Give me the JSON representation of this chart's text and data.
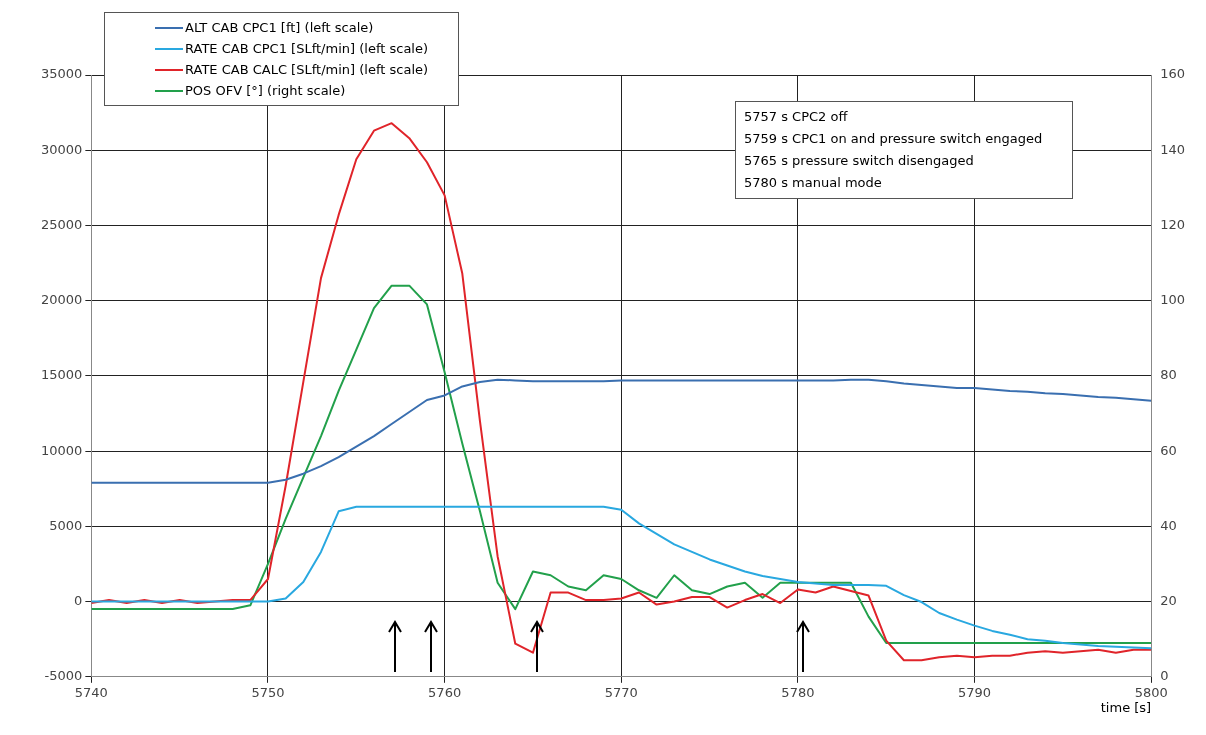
{
  "chart_data": {
    "type": "line",
    "xlabel": "time [s]",
    "x": [
      5740,
      5741,
      5742,
      5743,
      5744,
      5745,
      5746,
      5747,
      5748,
      5749,
      5750,
      5751,
      5752,
      5753,
      5754,
      5755,
      5756,
      5757,
      5758,
      5759,
      5760,
      5761,
      5762,
      5763,
      5764,
      5765,
      5766,
      5767,
      5768,
      5769,
      5770,
      5771,
      5772,
      5773,
      5774,
      5775,
      5776,
      5777,
      5778,
      5779,
      5780,
      5781,
      5782,
      5783,
      5784,
      5785,
      5786,
      5787,
      5788,
      5789,
      5790,
      5791,
      5792,
      5793,
      5794,
      5795,
      5796,
      5797,
      5798,
      5799,
      5800
    ],
    "series": [
      {
        "name": "ALT CAB CPC1 [ft] (left scale)",
        "color": "#3a6fb0",
        "values": [
          7900,
          7900,
          7900,
          7900,
          7900,
          7900,
          7900,
          7900,
          7900,
          7900,
          7900,
          8100,
          8500,
          9000,
          9600,
          10300,
          11000,
          11800,
          12600,
          13400,
          13700,
          14300,
          14600,
          14750,
          14700,
          14650,
          14650,
          14650,
          14650,
          14650,
          14700,
          14700,
          14700,
          14700,
          14700,
          14700,
          14700,
          14700,
          14700,
          14700,
          14700,
          14700,
          14700,
          14750,
          14750,
          14650,
          14500,
          14400,
          14300,
          14200,
          14200,
          14100,
          14000,
          13950,
          13850,
          13800,
          13700,
          13600,
          13550,
          13450,
          13350
        ]
      },
      {
        "name": "RATE CAB CPC1 [SLft/min] (left scale)",
        "color": "#29a8e0",
        "values": [
          0,
          0,
          0,
          0,
          0,
          0,
          0,
          0,
          0,
          0,
          0,
          200,
          1300,
          3300,
          6000,
          6300,
          6300,
          6300,
          6300,
          6300,
          6300,
          6300,
          6300,
          6300,
          6300,
          6300,
          6300,
          6300,
          6300,
          6300,
          6100,
          5200,
          4500,
          3800,
          3300,
          2800,
          2400,
          2000,
          1700,
          1500,
          1300,
          1200,
          1100,
          1100,
          1100,
          1050,
          430,
          -30,
          -760,
          -1200,
          -1600,
          -1950,
          -2200,
          -2500,
          -2600,
          -2750,
          -2850,
          -2950,
          -3000,
          -3050,
          -3100
        ]
      },
      {
        "name": "RATE CAB CALC [SLft/min] (left scale)",
        "color": "#e0242a",
        "values": [
          -100,
          100,
          -100,
          100,
          -100,
          100,
          -100,
          0,
          100,
          100,
          1500,
          7700,
          14600,
          21500,
          25700,
          29400,
          31300,
          31800,
          30800,
          29200,
          27000,
          21800,
          12000,
          3000,
          -2800,
          -3400,
          600,
          600,
          100,
          100,
          200,
          600,
          -200,
          0,
          300,
          300,
          -400,
          100,
          500,
          -100,
          800,
          600,
          1000,
          700,
          400,
          -2600,
          -3900,
          -3900,
          -3700,
          -3600,
          -3700,
          -3600,
          -3600,
          -3400,
          -3300,
          -3400,
          -3300,
          -3200,
          -3400,
          -3200,
          -3200
        ]
      },
      {
        "name": "POS OFV [°] (right scale)",
        "color": "#22a04b",
        "axis": "y2",
        "values": [
          18,
          18,
          18,
          18,
          18,
          18,
          18,
          18,
          18,
          19,
          30,
          42,
          53,
          64,
          76,
          87,
          98,
          104,
          104,
          99,
          81,
          62,
          44,
          25,
          18,
          28,
          27,
          24,
          23,
          27,
          26,
          23,
          21,
          27,
          23,
          22,
          24,
          25,
          21,
          25,
          25,
          25,
          25,
          25,
          16,
          9,
          9,
          9,
          9,
          9,
          9,
          9,
          9,
          9,
          9,
          9,
          9,
          9,
          9,
          9,
          9
        ]
      }
    ],
    "xlim": [
      5740,
      5800
    ],
    "xticks": [
      5740,
      5750,
      5760,
      5770,
      5780,
      5790,
      5800
    ],
    "ylim": [
      -5000,
      35000
    ],
    "yticks": [
      -5000,
      0,
      5000,
      10000,
      15000,
      20000,
      25000,
      30000,
      35000
    ],
    "y2lim": [
      0,
      160
    ],
    "y2ticks": [
      0,
      20,
      40,
      60,
      80,
      100,
      120,
      140,
      160
    ],
    "grid": true,
    "legend": "top left",
    "marker": "none",
    "line_style": "solid",
    "annotations": [
      "5757 s CPC2 off",
      "5759 s CPC1 on and pressure switch engaged",
      "5765 s pressure switch disengaged",
      "5780 s manual mode"
    ]
  }
}
